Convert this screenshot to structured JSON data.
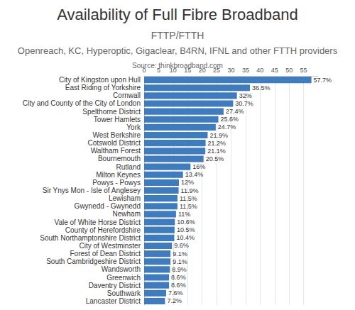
{
  "chart_data": {
    "type": "bar",
    "title": "Availability of Full Fibre Broadband",
    "subtitle": "FTTP/FTTH",
    "annotations": [
      "Openreach, KC, Hyperoptic, Gigaclear, B4RN, IFNL and other FTTH providers",
      "Source: thinkbroadband.com"
    ],
    "orientation": "horizontal",
    "categories": [
      "City of Kingston upon Hull",
      "East Riding of Yorkshire",
      "Cornwall",
      "City and County of the City of London",
      "Spelthorne District",
      "Tower Hamlets",
      "York",
      "West Berkshire",
      "Cotswold District",
      "Waltham Forest",
      "Bournemouth",
      "Rutland",
      "Milton Keynes",
      "Powys - Powys",
      "Sir Ynys Mon - Isle of Anglesey",
      "Lewisham",
      "Gwynedd - Gwynedd",
      "Newham",
      "Vale of White Horse District",
      "County of Herefordshire",
      "South Northamptonshire District",
      "City of Westminster",
      "Forest of Dean District",
      "South Cambridgeshire District",
      "Wandsworth",
      "Greenwich",
      "Daventry District",
      "Southwark",
      "Lancaster District"
    ],
    "values": [
      57.7,
      36.5,
      32,
      30.7,
      27.4,
      25.6,
      24.7,
      21.9,
      21.2,
      21.1,
      20.5,
      16,
      13.4,
      12,
      11.9,
      11.5,
      11.5,
      11,
      10.6,
      10.5,
      10.4,
      9.6,
      9.1,
      9.1,
      8.9,
      8.6,
      8.6,
      7.6,
      7.2
    ],
    "value_labels": [
      "57.7%",
      "36.5%",
      "32%",
      "30.7%",
      "27.4%",
      "25.6%",
      "24.7%",
      "21.9%",
      "21.2%",
      "21.1%",
      "20.5%",
      "16%",
      "13.4%",
      "12%",
      "11.9%",
      "11.5%",
      "11.5%",
      "11%",
      "10.6%",
      "10.5%",
      "10.4%",
      "9.6%",
      "9.1%",
      "9.1%",
      "8.9%",
      "8.6%",
      "8.6%",
      "7.6%",
      "7.2%"
    ],
    "data_labels": true,
    "color": "#3f7cbf",
    "xlim": [
      0,
      60
    ],
    "xticks": [
      0,
      5,
      10,
      15,
      20,
      25,
      30,
      35,
      40,
      45,
      50,
      55
    ],
    "grid": true
  }
}
